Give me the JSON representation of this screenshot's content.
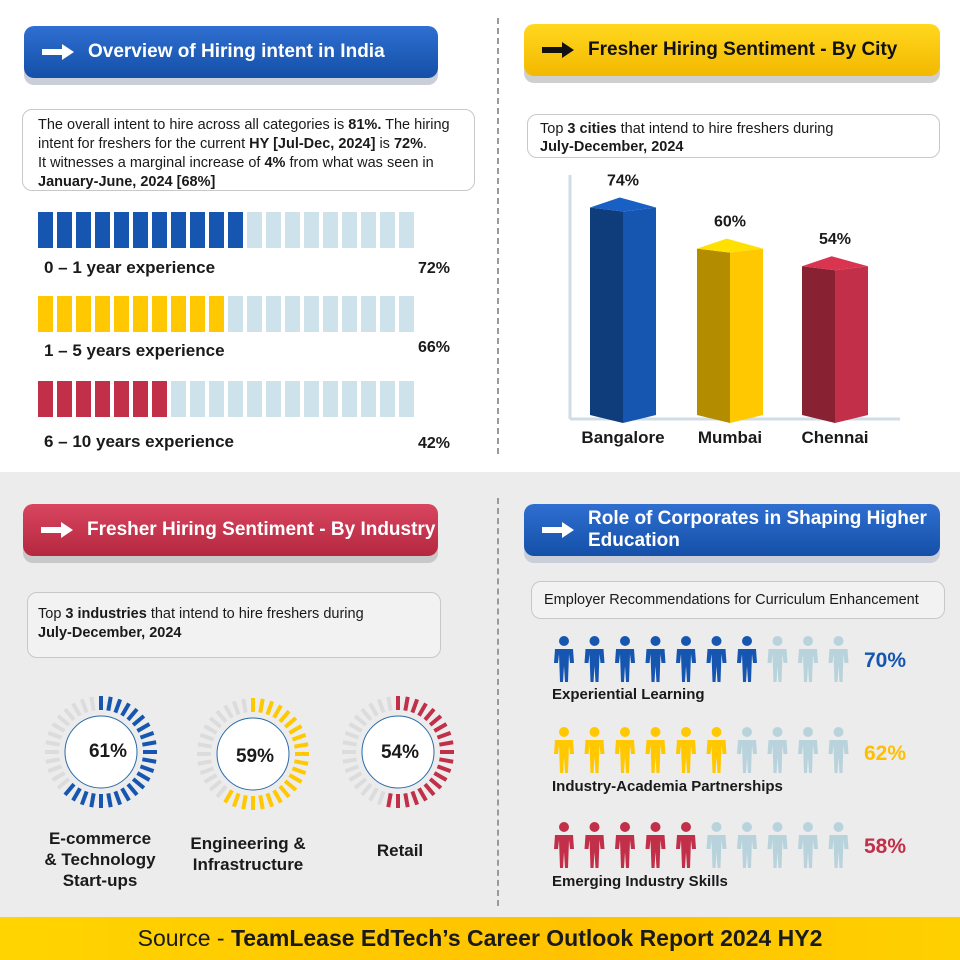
{
  "colors": {
    "blue": "#1656b0",
    "yellow": "#ffc800",
    "red": "#c22f48",
    "light": "#cde2ea"
  },
  "overview": {
    "title": "Overview of Hiring intent in India",
    "summary": [
      [
        {
          "t": "The overall intent to hire across all categories is "
        },
        {
          "t": "81%.",
          "b": true
        },
        {
          "t": " The hiring intent for freshers for the current "
        },
        {
          "t": "HY [Jul-Dec, 2024]",
          "b": true
        },
        {
          "t": " is "
        },
        {
          "t": "72%",
          "b": true
        },
        {
          "t": "."
        }
      ],
      [
        {
          "t": "It witnesses a marginal increase of "
        },
        {
          "t": "4%",
          "b": true
        },
        {
          "t": " from what was seen in "
        }
      ],
      [
        {
          "t": "January-June, 2024 [68%]",
          "b": true
        }
      ]
    ],
    "experience": [
      {
        "label": "0 – 1 year experience",
        "pct": "72%",
        "value": 72,
        "color": "#1656b0"
      },
      {
        "label": "1 – 5 years experience",
        "pct": "66%",
        "value": 66,
        "color": "#ffc800"
      },
      {
        "label": "6 – 10 years experience",
        "pct": "42%",
        "value": 42,
        "color": "#c22f48"
      }
    ]
  },
  "city": {
    "title": "Fresher Hiring Sentiment - By City",
    "note": [
      {
        "t": "Top "
      },
      {
        "t": "3 cities",
        "b": true
      },
      {
        "t": " that intend to hire freshers during"
      }
    ],
    "note2": "July-December, 2024"
  },
  "industry": {
    "title": "Fresher Hiring Sentiment - By Industry",
    "note": [
      {
        "t": "Top "
      },
      {
        "t": "3 industries",
        "b": true
      },
      {
        "t": " that intend to hire freshers during"
      }
    ],
    "note2": "July-December, 2024",
    "items": [
      {
        "name_lines": [
          "E-commerce",
          "& Technology",
          "Start-ups"
        ],
        "pct": "61%",
        "value": 61,
        "color": "#1656b0"
      },
      {
        "name_lines": [
          "Engineering &",
          "Infrastructure"
        ],
        "pct": "59%",
        "value": 59,
        "color": "#ffc800"
      },
      {
        "name_lines": [
          "Retail"
        ],
        "pct": "54%",
        "value": 54,
        "color": "#c22f48"
      }
    ]
  },
  "corporates": {
    "title_lines": [
      "Role of Corporates in Shaping Higher",
      "Education"
    ],
    "note": "Employer Recommendations for Curriculum Enhancement",
    "items": [
      {
        "label": "Experiential Learning",
        "pct": "70%",
        "value": 70,
        "color": "#1656b0"
      },
      {
        "label": "Industry-Academia Partnerships",
        "pct": "62%",
        "value": 62,
        "color": "#ffc800"
      },
      {
        "label": "Emerging Industry Skills",
        "pct": "58%",
        "value": 58,
        "color": "#c22f48"
      }
    ]
  },
  "footer": {
    "prefix": "Source - ",
    "bold": "TeamLease EdTech’s Career Outlook Report 2024 HY2"
  },
  "chart_data": {
    "type": "bar",
    "categories": [
      "Bangalore",
      "Mumbai",
      "Chennai"
    ],
    "values": [
      74,
      60,
      54
    ],
    "value_labels": [
      "74%",
      "60%",
      "54%"
    ],
    "colors": [
      "#1656b0",
      "#ffc800",
      "#c22f48"
    ],
    "ylim": [
      0,
      80
    ]
  }
}
